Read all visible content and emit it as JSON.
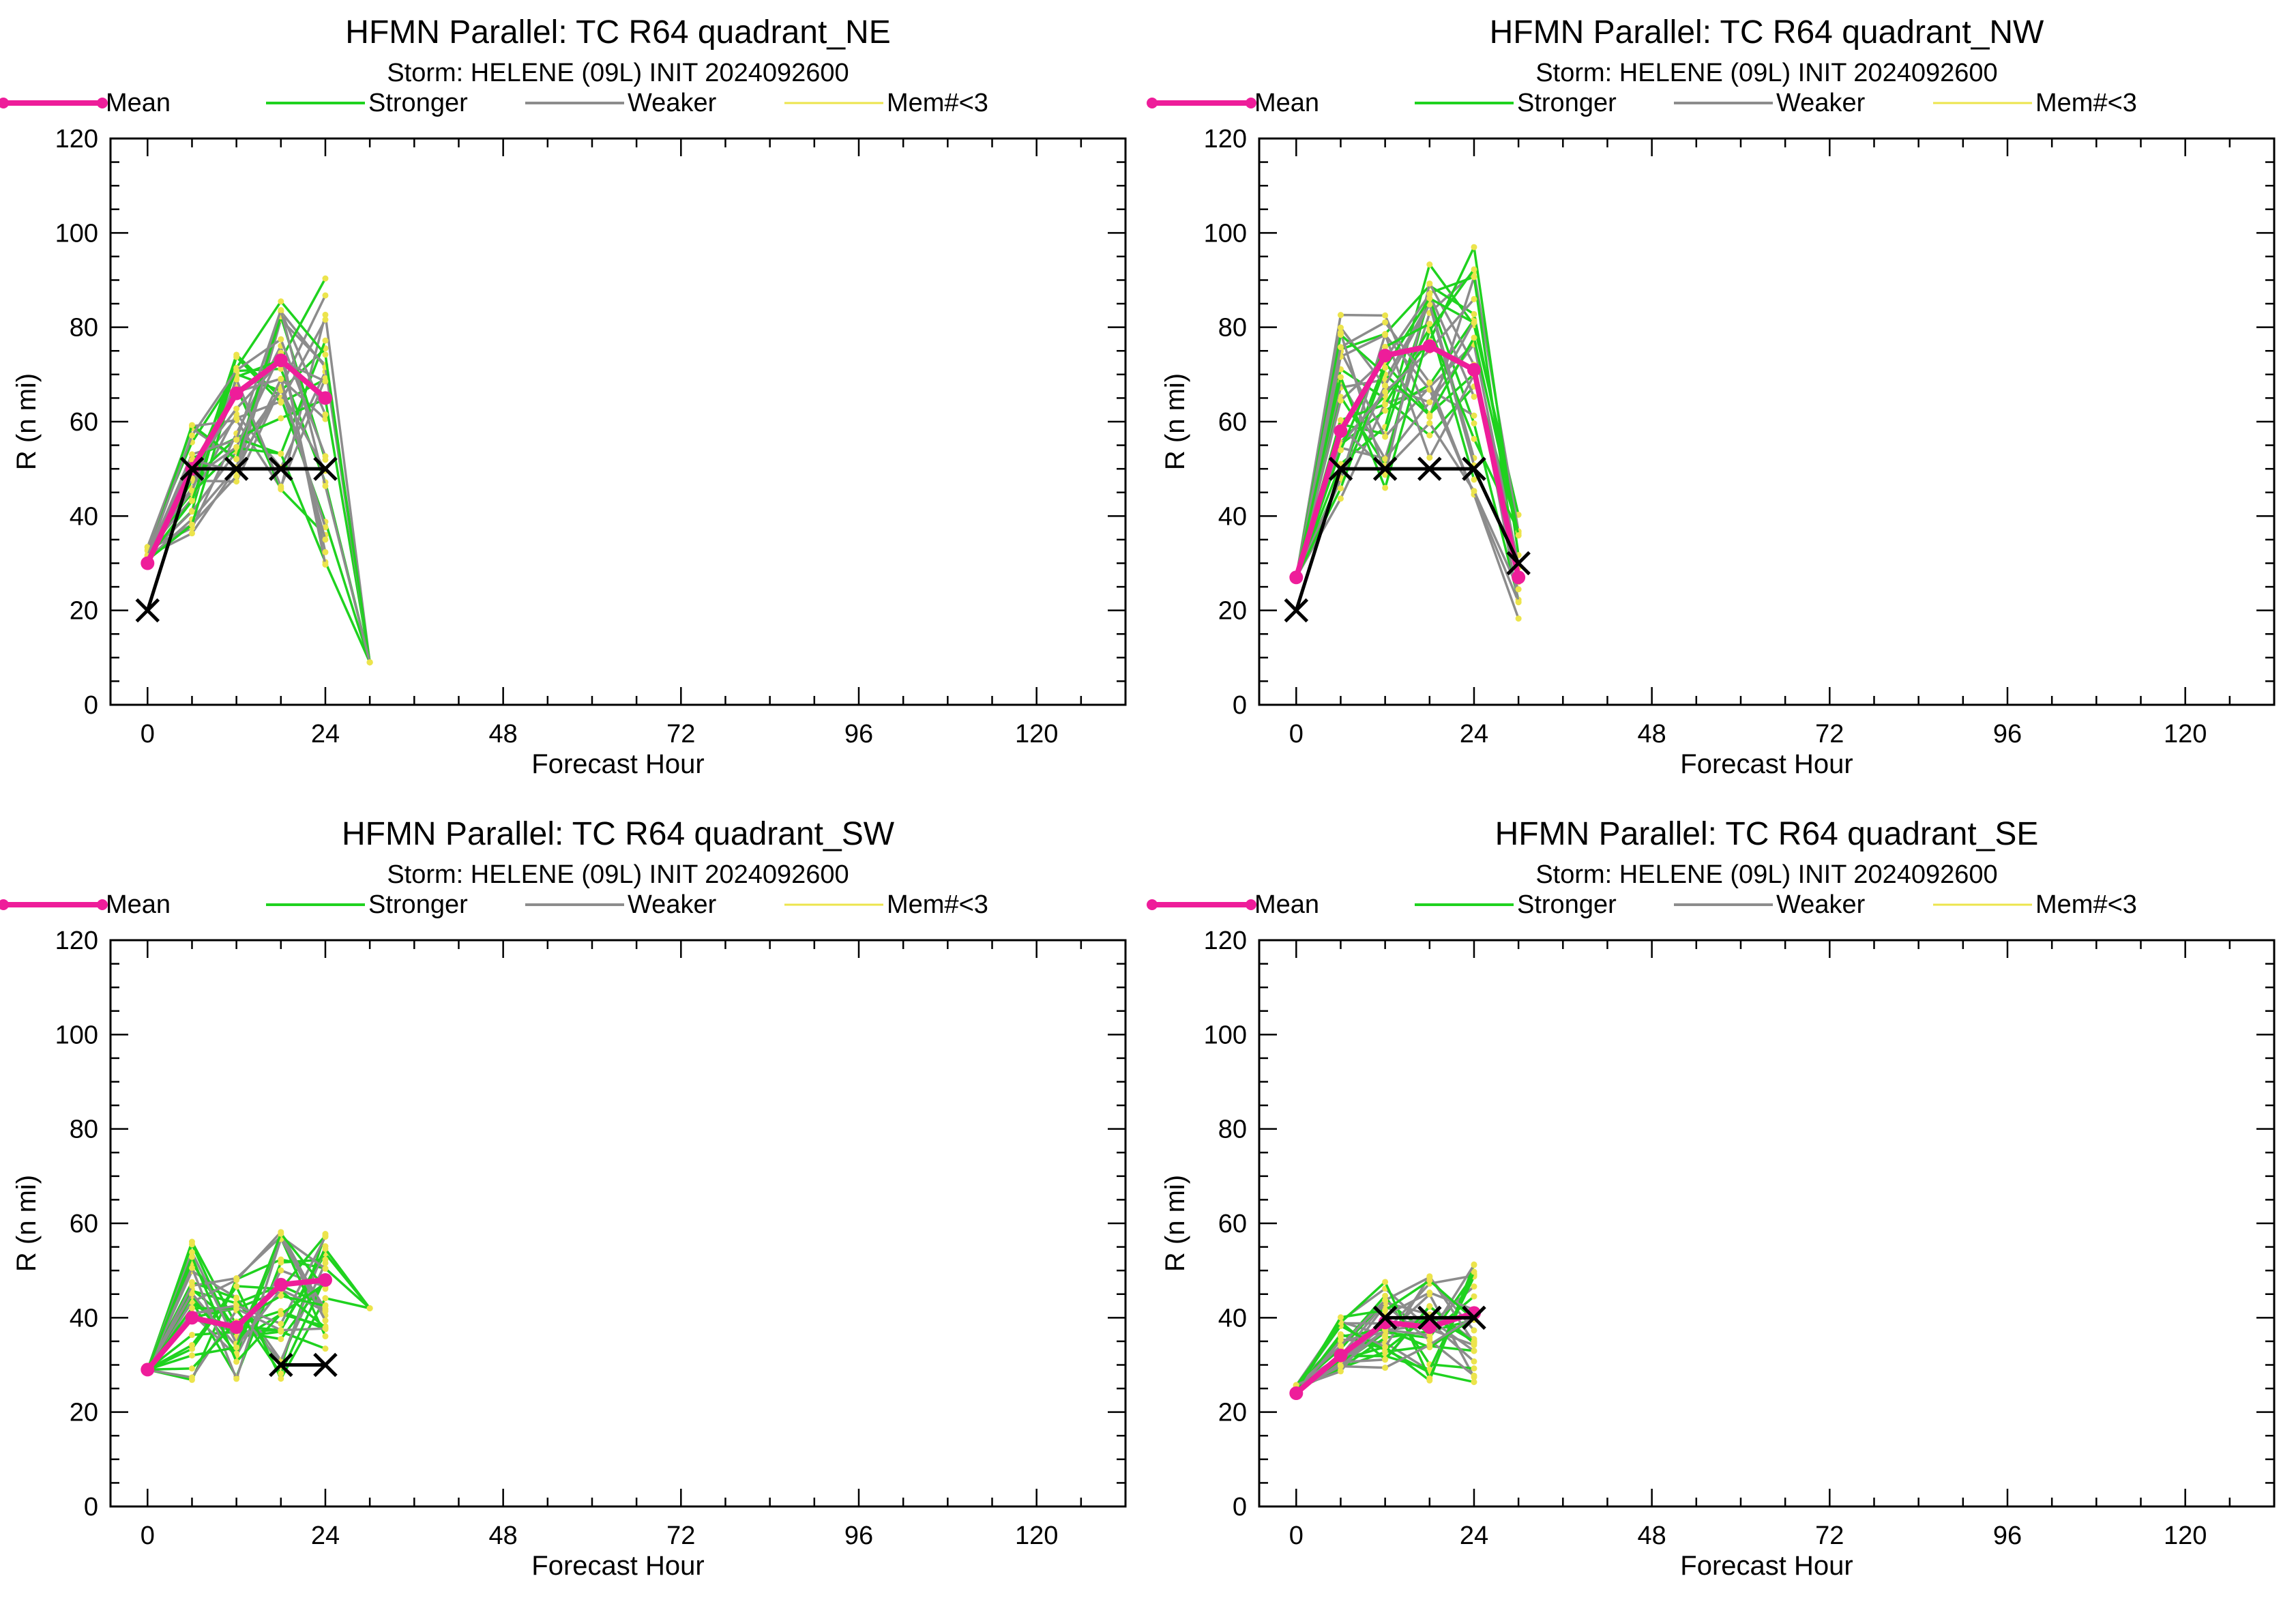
{
  "legend": {
    "mean": "Mean",
    "stronger": "Stronger",
    "weaker": "Weaker",
    "few_members": "Mem#<3"
  },
  "colors": {
    "mean": "#ee1d9a",
    "stronger": "#1fd21f",
    "weaker": "#8c8c8c",
    "few_members": "#ece44c",
    "tc_vitals": "#000000"
  },
  "chart_data": [
    {
      "type": "line",
      "title": "HFMN Parallel: TC  R64 quadrant_NE",
      "subtitle": "Storm: HELENE (09L) INIT 2024092600",
      "xlabel": "Forecast Hour",
      "ylabel": "R (n mi)",
      "xlim": [
        -5,
        132
      ],
      "ylim": [
        0,
        120
      ],
      "xticks": [
        0,
        24,
        48,
        72,
        96,
        120
      ],
      "yticks": [
        0,
        20,
        40,
        60,
        80,
        100,
        120
      ],
      "series": [
        {
          "name": "Mean",
          "x": [
            0,
            6,
            12,
            18,
            24
          ],
          "y": [
            30,
            50,
            66,
            73,
            65
          ]
        },
        {
          "x": [
            0,
            6,
            12,
            18,
            24
          ],
          "y": [
            20,
            50,
            50,
            50,
            50
          ]
        }
      ],
      "member_band": {
        "x": [
          0,
          6,
          12,
          18,
          24,
          30
        ],
        "y_min": [
          30,
          32,
          39,
          40,
          18,
          9
        ],
        "y_max": [
          34,
          63,
          79,
          96,
          99,
          9
        ]
      }
    },
    {
      "type": "line",
      "title": "HFMN Parallel: TC  R64 quadrant_NW",
      "subtitle": "Storm: HELENE (09L) INIT 2024092600",
      "xlabel": "Forecast Hour",
      "ylabel": "R (n mi)",
      "xlim": [
        -5,
        132
      ],
      "ylim": [
        0,
        120
      ],
      "xticks": [
        0,
        24,
        48,
        72,
        96,
        120
      ],
      "yticks": [
        0,
        20,
        40,
        60,
        80,
        100,
        120
      ],
      "series": [
        {
          "name": "Mean",
          "x": [
            0,
            6,
            12,
            18,
            24,
            30
          ],
          "y": [
            27,
            58,
            74,
            76,
            71,
            27
          ]
        },
        {
          "x": [
            0,
            6,
            12,
            18,
            24,
            30
          ],
          "y": [
            20,
            50,
            50,
            50,
            50,
            30
          ]
        }
      ],
      "member_band": {
        "x": [
          0,
          6,
          12,
          18,
          24,
          30
        ],
        "y_min": [
          27,
          35,
          39,
          47,
          37,
          15
        ],
        "y_max": [
          27,
          89,
          94,
          100,
          105,
          45
        ]
      }
    },
    {
      "type": "line",
      "title": "HFMN Parallel: TC  R64 quadrant_SW",
      "subtitle": "Storm: HELENE (09L) INIT 2024092600",
      "xlabel": "Forecast Hour",
      "ylabel": "R (n mi)",
      "xlim": [
        -5,
        132
      ],
      "ylim": [
        0,
        120
      ],
      "xticks": [
        0,
        24,
        48,
        72,
        96,
        120
      ],
      "yticks": [
        0,
        20,
        40,
        60,
        80,
        100,
        120
      ],
      "series": [
        {
          "name": "Mean",
          "x": [
            0,
            6,
            12,
            18,
            24
          ],
          "y": [
            29,
            40,
            38,
            47,
            48
          ]
        },
        {
          "x": [
            18,
            24
          ],
          "y": [
            30,
            30
          ]
        }
      ],
      "member_band": {
        "x": [
          0,
          6,
          12,
          18,
          24,
          30
        ],
        "y_min": [
          29,
          23,
          24,
          23,
          30,
          42
        ],
        "y_max": [
          29,
          60,
          52,
          63,
          62,
          42
        ]
      }
    },
    {
      "type": "line",
      "title": "HFMN Parallel: TC  R64 quadrant_SE",
      "subtitle": "Storm: HELENE (09L) INIT 2024092600",
      "xlabel": "Forecast Hour",
      "ylabel": "R (n mi)",
      "xlim": [
        -5,
        132
      ],
      "ylim": [
        0,
        120
      ],
      "xticks": [
        0,
        24,
        48,
        72,
        96,
        120
      ],
      "yticks": [
        0,
        20,
        40,
        60,
        80,
        100,
        120
      ],
      "series": [
        {
          "name": "Mean",
          "x": [
            0,
            6,
            12,
            18,
            24
          ],
          "y": [
            24,
            32,
            39,
            38,
            41
          ]
        },
        {
          "x": [
            12,
            18,
            24
          ],
          "y": [
            40,
            40,
            40
          ]
        }
      ],
      "member_band": {
        "x": [
          0,
          6,
          12,
          18,
          24
        ],
        "y_min": [
          24,
          24,
          26,
          21,
          21
        ],
        "y_max": [
          26,
          42,
          50,
          52,
          55
        ]
      }
    }
  ]
}
